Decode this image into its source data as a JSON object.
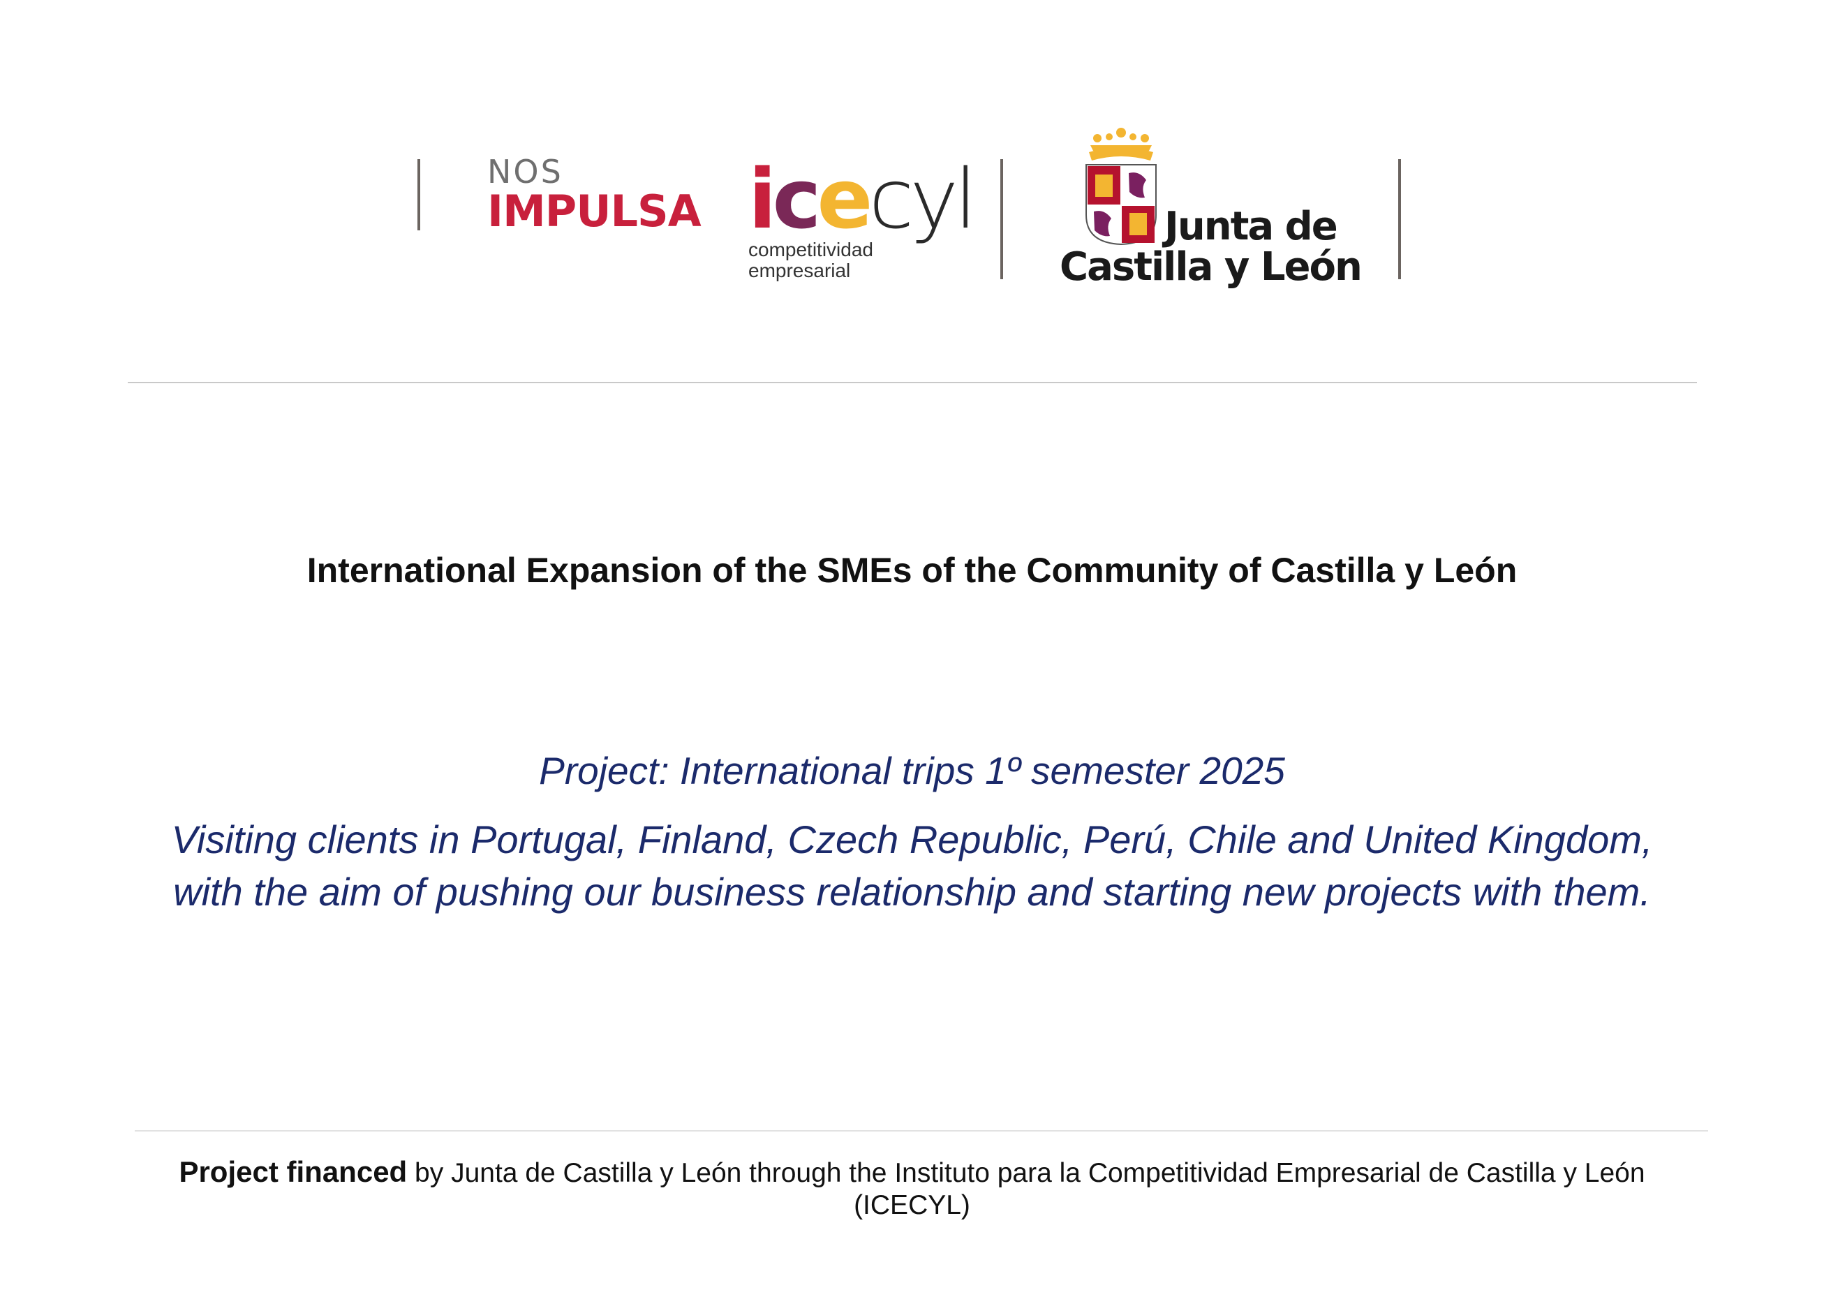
{
  "header": {
    "logos": {
      "nos_impulsa": {
        "line1": "NOS",
        "line2": "IMPULSA",
        "colors": {
          "nos": "#6f6f6f",
          "impulsa": "#c8203c",
          "accent": "#f3b531"
        }
      },
      "icecyl": {
        "wordmark": "icecyl",
        "sub1": "competitividad",
        "sub2": "empresarial",
        "colors": {
          "i": "#c8203c",
          "c": "#7a2857",
          "e": "#f3b531",
          "cyl": "#2a2a2a"
        }
      },
      "junta": {
        "line1": "Junta de",
        "line2": "Castilla y León",
        "colors": {
          "crown": "#f3b531",
          "castle_field": "#b5122e",
          "lion": "#7a2060"
        }
      }
    }
  },
  "document": {
    "title": "International Expansion of the SMEs of the Community of Castilla y León",
    "project_line": "Project: International trips 1º semester 2025",
    "description_line1": "Visiting clients in Portugal, Finland, Czech Republic, Perú, Chile and United Kingdom,",
    "description_line2": "with the aim of pushing our business relationship and starting new projects with them."
  },
  "footer": {
    "bold_prefix": "Project financed",
    "text": " by Junta de Castilla y León through the Instituto para la Competitividad Empresarial de Castilla y León",
    "line2": "(ICECYL)"
  }
}
